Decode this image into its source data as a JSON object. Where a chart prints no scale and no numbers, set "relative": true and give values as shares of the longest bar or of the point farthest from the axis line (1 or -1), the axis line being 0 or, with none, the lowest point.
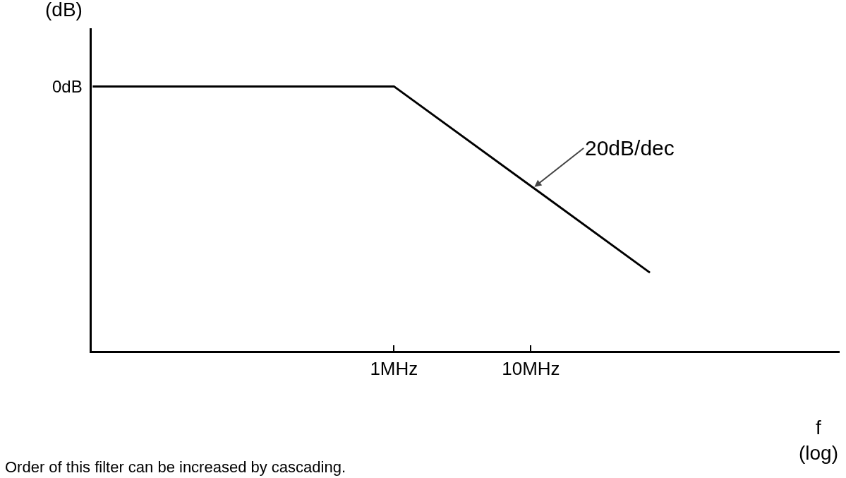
{
  "chart_data": {
    "type": "line",
    "relative": true,
    "log": "x",
    "ylabel": "(dB)",
    "xlabel": "f\n(log)",
    "x": [
      0.0063,
      1,
      74
    ],
    "series": [
      {
        "color": "#000000",
        "values": [
          1,
          1,
          0.296
        ]
      }
    ],
    "xlim": [
      0.0062,
      1800
    ],
    "xticks": [
      {
        "value": 1,
        "label": "1MHz"
      },
      {
        "value": 10,
        "label": "10MHz"
      }
    ],
    "grid": false,
    "marker": "none",
    "line_style": "solid",
    "annotations": [
      {
        "text": "0dB",
        "x": 0.0063,
        "y": 1
      },
      {
        "text": "20dB/dec",
        "x": 10.6,
        "y": 0.62
      },
      "Order of this filter can be increased by cascading."
    ]
  }
}
